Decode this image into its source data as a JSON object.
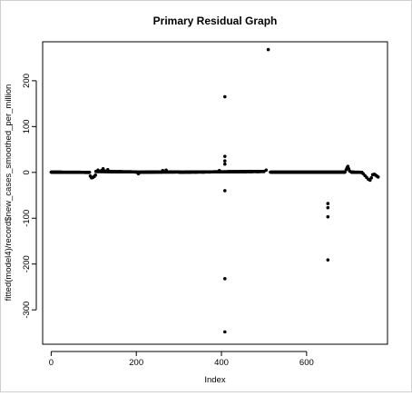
{
  "chart_data": {
    "type": "scatter",
    "title": "Primary Residual Graph",
    "xlabel": "Index",
    "ylabel": "fitted(model4)/record$new_cases_smoothed_per_million",
    "xlim": [
      -20,
      790
    ],
    "ylim": [
      -375,
      285
    ],
    "x_ticks": [
      0,
      200,
      400,
      600
    ],
    "y_ticks": [
      -300,
      -200,
      -100,
      0,
      100,
      200
    ],
    "grid": false,
    "legend": "none",
    "point_color": "#000000",
    "baseline_segments": [
      {
        "x_start": 0,
        "x_end": 90,
        "y_start": 0.5,
        "y_end": 0
      },
      {
        "x_start": 105,
        "x_end": 200,
        "y_start": 2,
        "y_end": 1
      },
      {
        "x_start": 200,
        "x_end": 300,
        "y_start": 0.5,
        "y_end": 1
      },
      {
        "x_start": 300,
        "x_end": 500,
        "y_start": 0.5,
        "y_end": 2
      },
      {
        "x_start": 515,
        "x_end": 690,
        "y_start": 0.5,
        "y_end": 0.5
      },
      {
        "x_start": 705,
        "x_end": 730,
        "y_start": 0.5,
        "y_end": 0
      }
    ],
    "points": [
      {
        "x": 92,
        "y": -8
      },
      {
        "x": 95,
        "y": -12
      },
      {
        "x": 98,
        "y": -11
      },
      {
        "x": 101,
        "y": -9
      },
      {
        "x": 104,
        "y": -6
      },
      {
        "x": 110,
        "y": 5
      },
      {
        "x": 118,
        "y": 4
      },
      {
        "x": 122,
        "y": 8
      },
      {
        "x": 127,
        "y": 3
      },
      {
        "x": 133,
        "y": 6
      },
      {
        "x": 205,
        "y": -3
      },
      {
        "x": 262,
        "y": 4
      },
      {
        "x": 270,
        "y": 5
      },
      {
        "x": 395,
        "y": 4
      },
      {
        "x": 408,
        "y": 165
      },
      {
        "x": 408,
        "y": 35
      },
      {
        "x": 408,
        "y": 25
      },
      {
        "x": 408,
        "y": 18
      },
      {
        "x": 408,
        "y": -40
      },
      {
        "x": 408,
        "y": -232
      },
      {
        "x": 408,
        "y": -348
      },
      {
        "x": 505,
        "y": 5
      },
      {
        "x": 510,
        "y": 268
      },
      {
        "x": 650,
        "y": -68
      },
      {
        "x": 650,
        "y": -77
      },
      {
        "x": 650,
        "y": -97
      },
      {
        "x": 650,
        "y": -191
      },
      {
        "x": 693,
        "y": 6
      },
      {
        "x": 695,
        "y": 10
      },
      {
        "x": 697,
        "y": 13
      },
      {
        "x": 699,
        "y": 8
      },
      {
        "x": 701,
        "y": 3
      },
      {
        "x": 733,
        "y": -3
      },
      {
        "x": 737,
        "y": -7
      },
      {
        "x": 741,
        "y": -11
      },
      {
        "x": 745,
        "y": -15
      },
      {
        "x": 749,
        "y": -17
      },
      {
        "x": 752,
        "y": -12
      },
      {
        "x": 755,
        "y": -5
      },
      {
        "x": 759,
        "y": -4
      },
      {
        "x": 762,
        "y": -6
      },
      {
        "x": 765,
        "y": -8
      },
      {
        "x": 768,
        "y": -10
      }
    ]
  }
}
